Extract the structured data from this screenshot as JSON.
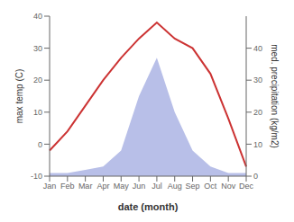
{
  "chart_data": {
    "type": "line",
    "x_label": "date (month)",
    "y_label": "max temp (C)",
    "y2_label": "med. precipitation (kg/m2)",
    "categories": [
      "Jan",
      "Feb",
      "Mar",
      "Apr",
      "May",
      "Jun",
      "Jul",
      "Aug",
      "Sep",
      "Oct",
      "Nov",
      "Dec"
    ],
    "series": [
      {
        "type": "area",
        "color": "#b8bfe8",
        "axis": "y2",
        "values": [
          1,
          1,
          2,
          3,
          8,
          25,
          37,
          20,
          8,
          3,
          1,
          1
        ]
      },
      {
        "type": "line",
        "color": "#cc3333",
        "values": [
          -2,
          4,
          12,
          20,
          27,
          33,
          38,
          33,
          30,
          22,
          8,
          -7
        ]
      }
    ],
    "ylim": [
      -10,
      40
    ],
    "yticks": [
      -10,
      0,
      10,
      20,
      30,
      40
    ],
    "y2lim": [
      0,
      50
    ],
    "y2ticks": [
      0,
      10,
      20,
      30,
      40
    ],
    "grid": false
  }
}
